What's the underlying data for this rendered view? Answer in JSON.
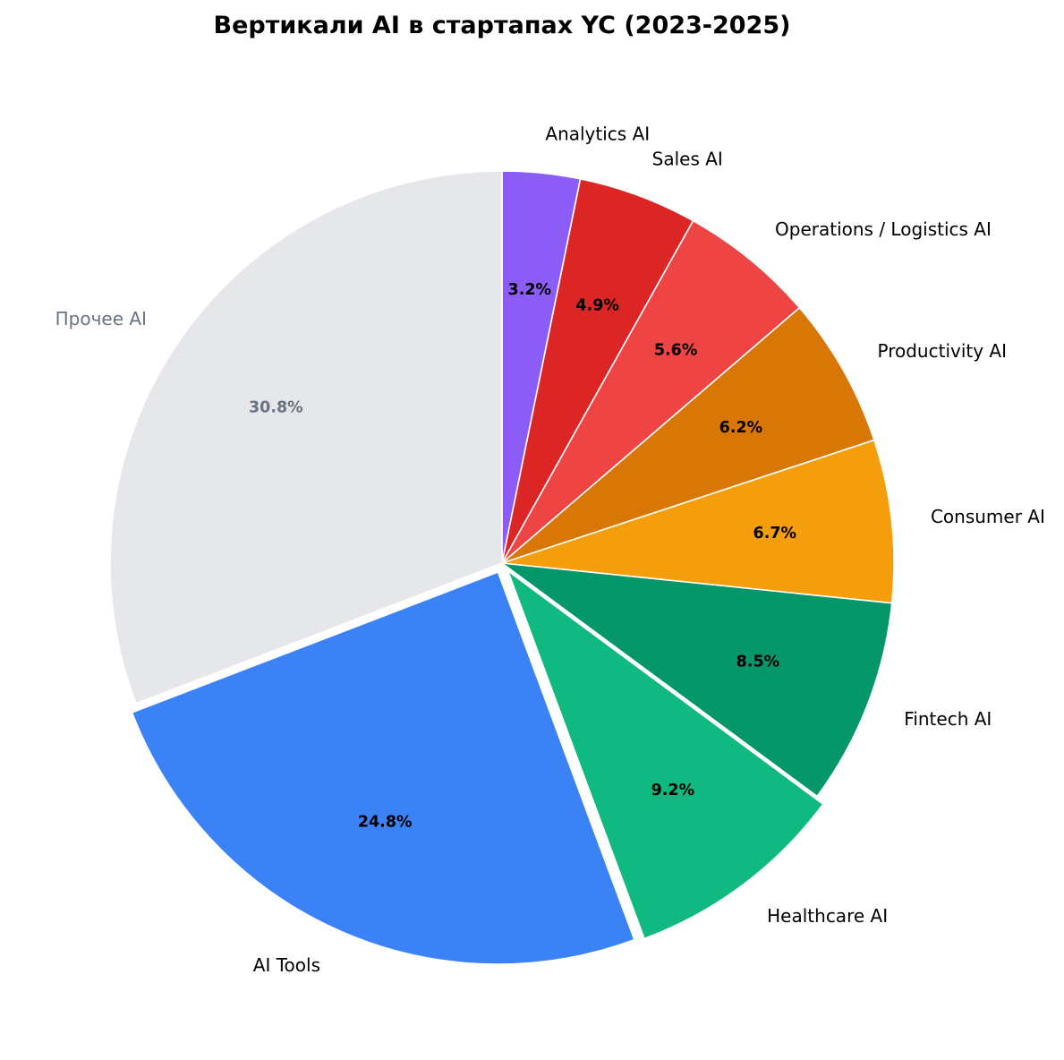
{
  "chart_data": {
    "type": "pie",
    "title": "Вертикали AI в стартапах YC (2023-2025)",
    "slices": [
      {
        "label": "Analytics AI",
        "value": 3.2,
        "pct_label": "3.2%",
        "color": "#8b5cf6",
        "text_color": "#000000",
        "pct_color": "#000000",
        "explode": false
      },
      {
        "label": "Sales AI",
        "value": 4.9,
        "pct_label": "4.9%",
        "color": "#dc2626",
        "text_color": "#000000",
        "pct_color": "#000000",
        "explode": false
      },
      {
        "label": "Operations / Logistics AI",
        "value": 5.6,
        "pct_label": "5.6%",
        "color": "#ef4444",
        "text_color": "#000000",
        "pct_color": "#000000",
        "explode": false
      },
      {
        "label": "Productivity AI",
        "value": 6.2,
        "pct_label": "6.2%",
        "color": "#d97706",
        "text_color": "#000000",
        "pct_color": "#000000",
        "explode": false
      },
      {
        "label": "Consumer AI",
        "value": 6.7,
        "pct_label": "6.7%",
        "color": "#f59e0b",
        "text_color": "#000000",
        "pct_color": "#000000",
        "explode": false
      },
      {
        "label": "Fintech AI",
        "value": 8.5,
        "pct_label": "8.5%",
        "color": "#059669",
        "text_color": "#000000",
        "pct_color": "#000000",
        "explode": false
      },
      {
        "label": "Healthcare AI",
        "value": 9.2,
        "pct_label": "9.2%",
        "color": "#10b981",
        "text_color": "#000000",
        "pct_color": "#000000",
        "explode": true
      },
      {
        "label": "AI Tools",
        "value": 24.8,
        "pct_label": "24.8%",
        "color": "#3b82f6",
        "text_color": "#000000",
        "pct_color": "#000000",
        "explode": true
      },
      {
        "label": "Прочее AI",
        "value": 30.8,
        "pct_label": "30.8%",
        "color": "#e5e7eb",
        "text_color": "#6b7280",
        "pct_color": "#6b7280",
        "explode": false
      }
    ],
    "start_angle_deg": 90,
    "direction": "clockwise",
    "edge_color": "#ffffff"
  }
}
